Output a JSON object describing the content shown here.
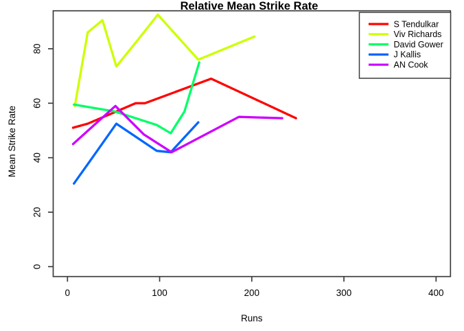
{
  "chart_data": {
    "type": "line",
    "title": "Relative Mean Strike Rate",
    "xlabel": "Runs",
    "ylabel": "Mean Strike Rate",
    "xlim": [
      0,
      400
    ],
    "ylim": [
      0,
      94
    ],
    "x_ticks": [
      0,
      100,
      200,
      300,
      400
    ],
    "y_ticks": [
      0,
      20,
      40,
      60,
      80
    ],
    "grid": false,
    "legend_position": "top-right",
    "series": [
      {
        "name": "S Tendulkar",
        "color": "#FF0000",
        "points": [
          [
            6,
            51
          ],
          [
            22,
            52.5
          ],
          [
            74,
            60
          ],
          [
            84,
            60
          ],
          [
            156,
            69
          ],
          [
            248,
            54.5
          ]
        ]
      },
      {
        "name": "Viv Richards",
        "color": "#CCFF00",
        "points": [
          [
            8,
            59
          ],
          [
            22,
            86
          ],
          [
            38,
            90.5
          ],
          [
            53,
            73.5
          ],
          [
            77,
            83.5
          ],
          [
            98,
            92.5
          ],
          [
            142,
            76
          ],
          [
            203,
            84.5
          ]
        ]
      },
      {
        "name": "David Gower",
        "color": "#00FF66",
        "points": [
          [
            7,
            59.5
          ],
          [
            51,
            57
          ],
          [
            97,
            52
          ],
          [
            112,
            49
          ],
          [
            127,
            57
          ],
          [
            143,
            75
          ]
        ]
      },
      {
        "name": "J Kallis",
        "color": "#0066FF",
        "points": [
          [
            7,
            30.5
          ],
          [
            27,
            40
          ],
          [
            53,
            52.5
          ],
          [
            97,
            42.5
          ],
          [
            112,
            42
          ],
          [
            142,
            53
          ]
        ]
      },
      {
        "name": "AN Cook",
        "color": "#CC00FF",
        "points": [
          [
            6,
            45
          ],
          [
            52,
            59
          ],
          [
            83,
            48.5
          ],
          [
            113,
            42
          ],
          [
            186,
            55
          ],
          [
            233,
            54.5
          ]
        ]
      }
    ]
  }
}
